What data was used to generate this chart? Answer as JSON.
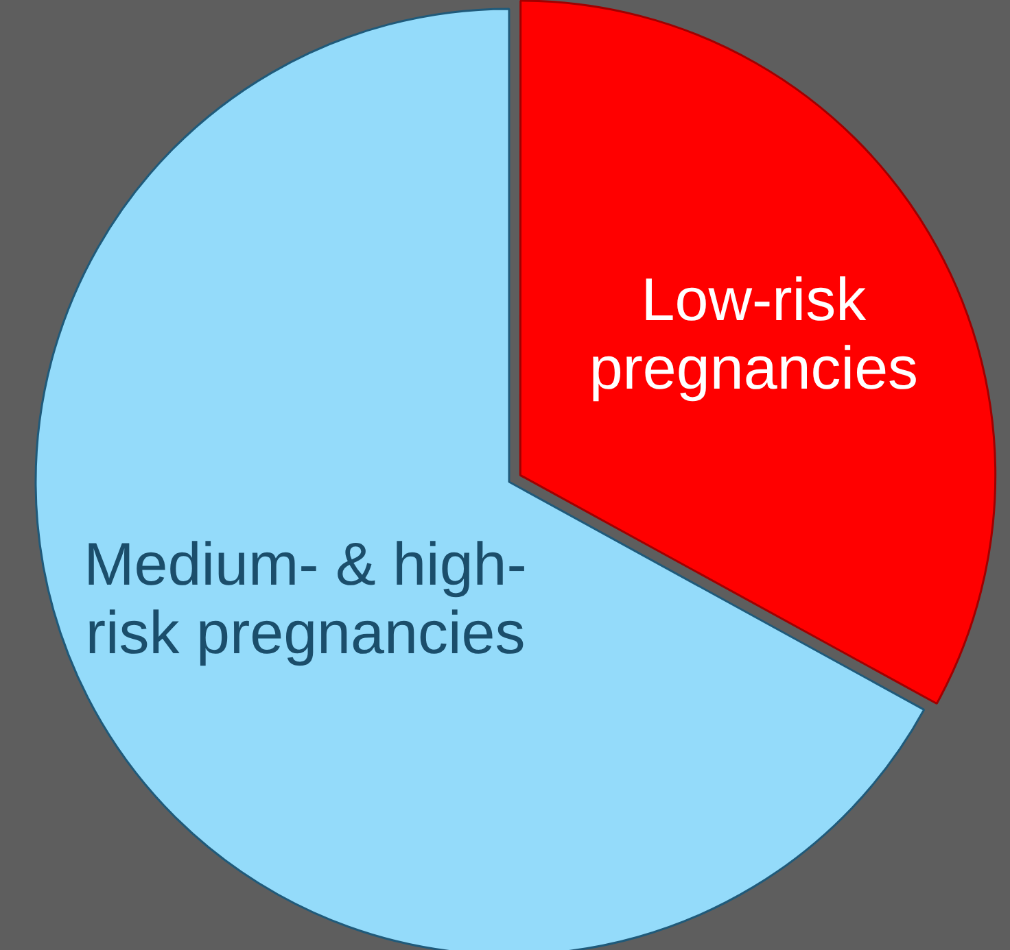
{
  "chart_data": {
    "type": "pie",
    "categories": [
      "Low-risk pregnancies",
      "Medium- & high-risk pregnancies"
    ],
    "values": [
      33,
      67
    ],
    "colors": [
      "#ff0000",
      "#94dbfa"
    ]
  }
}
